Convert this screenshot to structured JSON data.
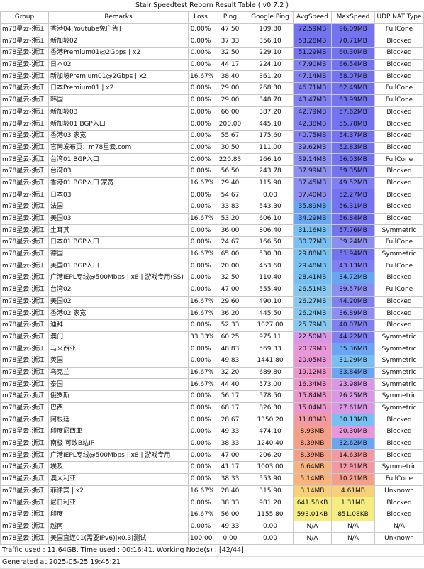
{
  "header": {
    "title": "Stair Speedtest Reborn Result Table ( v0.7.2 )"
  },
  "table": {
    "columns": [
      "Group",
      "Remarks",
      "Loss",
      "Ping",
      "Google Ping",
      "AvgSpeed",
      "MaxSpeed",
      "UDP NAT Type"
    ],
    "rows": [
      [
        "m78星云-浙江",
        "香港04[Youtube免广告]",
        "0.00%",
        "47.50",
        "109.80",
        "72.59MB",
        "96.09MB",
        "FullCone"
      ],
      [
        "m78星云-浙江",
        "新加坡02",
        "0.00%",
        "37.33",
        "356.10",
        "53.28MB",
        "70.71MB",
        "Blocked"
      ],
      [
        "m78星云-浙江",
        "香港Premium01@2Gbps | x2",
        "0.00%",
        "32.50",
        "229.10",
        "51.29MB",
        "60.30MB",
        "Blocked"
      ],
      [
        "m78星云-浙江",
        "日本02",
        "0.00%",
        "44.17",
        "224.10",
        "47.90MB",
        "66.54MB",
        "Blocked"
      ],
      [
        "m78星云-浙江",
        "新加坡Premium01@2Gbps | x2",
        "16.67%",
        "38.40",
        "361.20",
        "47.14MB",
        "58.07MB",
        "Blocked"
      ],
      [
        "m78星云-浙江",
        "日本Premium01 | x2",
        "0.00%",
        "29.00",
        "268.30",
        "46.71MB",
        "62.49MB",
        "FullCone"
      ],
      [
        "m78星云-浙江",
        "韩国",
        "0.00%",
        "29.00",
        "348.70",
        "43.47MB",
        "63.99MB",
        "FullCone"
      ],
      [
        "m78星云-浙江",
        "新加坡03",
        "0.00%",
        "66.00",
        "387.20",
        "42.79MB",
        "57.62MB",
        "Blocked"
      ],
      [
        "m78星云-浙江",
        "新加坡01 BGP入口",
        "0.00%",
        "200.00",
        "445.10",
        "42.38MB",
        "55.78MB",
        "Blocked"
      ],
      [
        "m78星云-浙江",
        "香港03 家宽",
        "0.00%",
        "55.67",
        "175.60",
        "40.75MB",
        "54.37MB",
        "Blocked"
      ],
      [
        "m78星云-浙江",
        "官网发布页：m78星云.com",
        "0.00%",
        "30.50",
        "111.00",
        "39.62MB",
        "52.83MB",
        "Blocked"
      ],
      [
        "m78星云-浙江",
        "台湾01 BGP入口",
        "0.00%",
        "220.83",
        "266.10",
        "39.14MB",
        "56.03MB",
        "FullCone"
      ],
      [
        "m78星云-浙江",
        "台湾03",
        "0.00%",
        "56.50",
        "243.78",
        "37.99MB",
        "59.35MB",
        "Blocked"
      ],
      [
        "m78星云-浙江",
        "香港01 BGP入口 家宽",
        "16.67%",
        "29.40",
        "115.90",
        "37.45MB",
        "49.52MB",
        "Blocked"
      ],
      [
        "m78星云-浙江",
        "日本03",
        "0.00%",
        "54.67",
        "0.00",
        "37.40MB",
        "52.27MB",
        "Blocked"
      ],
      [
        "m78星云-浙江",
        "法国",
        "0.00%",
        "33.83",
        "543.30",
        "35.89MB",
        "56.31MB",
        "Blocked"
      ],
      [
        "m78星云-浙江",
        "美国03",
        "16.67%",
        "53.20",
        "606.10",
        "34.29MB",
        "56.84MB",
        "Blocked"
      ],
      [
        "m78星云-浙江",
        "土耳其",
        "0.00%",
        "36.00",
        "806.40",
        "31.16MB",
        "57.76MB",
        "Symmetric"
      ],
      [
        "m78星云-浙江",
        "日本01 BGP入口",
        "0.00%",
        "24.67",
        "166.50",
        "30.77MB",
        "39.24MB",
        "FullCone"
      ],
      [
        "m78星云-浙江",
        "德国",
        "16.67%",
        "65.00",
        "530.30",
        "29.88MB",
        "51.94MB",
        "Symmetric"
      ],
      [
        "m78星云-浙江",
        "美国01 BGP入口",
        "0.00%",
        "20.00",
        "453.60",
        "29.48MB",
        "43.13MB",
        "FullCone"
      ],
      [
        "m78星云-浙江",
        "广港IEPL专线@500Mbps | x8 | 游戏专用(SS)",
        "0.00%",
        "32.50",
        "110.40",
        "28.41MB",
        "34.72MB",
        "Blocked"
      ],
      [
        "m78星云-浙江",
        "台湾02",
        "0.00%",
        "47.00",
        "555.40",
        "26.51MB",
        "39.57MB",
        "FullCone"
      ],
      [
        "m78星云-浙江",
        "美国02",
        "16.67%",
        "29.60",
        "490.10",
        "26.27MB",
        "44.20MB",
        "Blocked"
      ],
      [
        "m78星云-浙江",
        "香港02 家宽",
        "16.67%",
        "36.20",
        "445.50",
        "26.24MB",
        "36.89MB",
        "Blocked"
      ],
      [
        "m78星云-浙江",
        "迪拜",
        "0.00%",
        "52.33",
        "1027.00",
        "25.79MB",
        "40.07MB",
        "Blocked"
      ],
      [
        "m78星云-浙江",
        "澳门",
        "33.33%",
        "60.25",
        "975.11",
        "22.50MB",
        "44.22MB",
        "Symmetric"
      ],
      [
        "m78星云-浙江",
        "马来西亚",
        "0.00%",
        "48.83",
        "569.33",
        "20.79MB",
        "35.36MB",
        "Symmetric"
      ],
      [
        "m78星云-浙江",
        "英国",
        "0.00%",
        "49.83",
        "1441.80",
        "20.05MB",
        "31.29MB",
        "Symmetric"
      ],
      [
        "m78星云-浙江",
        "乌克兰",
        "16.67%",
        "32.20",
        "689.80",
        "19.12MB",
        "33.84MB",
        "Symmetric"
      ],
      [
        "m78星云-浙江",
        "泰国",
        "16.67%",
        "44.40",
        "573.00",
        "16.34MB",
        "23.98MB",
        "Symmetric"
      ],
      [
        "m78星云-浙江",
        "俄罗斯",
        "0.00%",
        "56.17",
        "578.50",
        "15.84MB",
        "26.25MB",
        "Symmetric"
      ],
      [
        "m78星云-浙江",
        "巴西",
        "0.00%",
        "68.17",
        "826.30",
        "15.04MB",
        "27.61MB",
        "Symmetric"
      ],
      [
        "m78星云-浙江",
        "阿根廷",
        "0.00%",
        "28.67",
        "1350.20",
        "11.83MB",
        "30.13MB",
        "Blocked"
      ],
      [
        "m78星云-浙江",
        "印度尼西亚",
        "0.00%",
        "49.33",
        "474.10",
        "8.93MB",
        "20.30MB",
        "Blocked"
      ],
      [
        "m78星云-浙江",
        "南极 可改B站IP",
        "0.00%",
        "38.33",
        "1240.40",
        "8.39MB",
        "32.62MB",
        "Blocked"
      ],
      [
        "m78星云-浙江",
        "广港IEPL专线@500Mbps | x8 | 游戏专用",
        "0.00%",
        "47.00",
        "206.20",
        "8.39MB",
        "14.63MB",
        "Blocked"
      ],
      [
        "m78星云-浙江",
        "埃及",
        "0.00%",
        "41.17",
        "1003.00",
        "6.64MB",
        "12.91MB",
        "Symmetric"
      ],
      [
        "m78星云-浙江",
        "澳大利亚",
        "0.00%",
        "38.33",
        "553.90",
        "5.14MB",
        "10.21MB",
        "FullCone"
      ],
      [
        "m78星云-浙江",
        "菲律宾 | x2",
        "16.67%",
        "28.40",
        "315.90",
        "3.14MB",
        "4.61MB",
        "Unknown"
      ],
      [
        "m78星云-浙江",
        "尼日利亚",
        "0.00%",
        "38.33",
        "981.20",
        "641.58KB",
        "1.31MB",
        "Blocked"
      ],
      [
        "m78星云-浙江",
        "印度",
        "16.67%",
        "56.00",
        "1155.80",
        "593.01KB",
        "851.08KB",
        "Blocked"
      ],
      [
        "m78星云-浙江",
        "越南",
        "0.00%",
        "49.33",
        "0.00",
        "N/A",
        "N/A",
        "N/A"
      ],
      [
        "m78星云-浙江",
        "美国直连01(需要IPv6)|x0.3|测试",
        "100.00%",
        "0.00",
        "0.00",
        "N/A",
        "N/A",
        "Unknown"
      ]
    ],
    "speed_colors": [
      [
        "#7474f0",
        "#7474f0"
      ],
      [
        "#7474f0",
        "#7474f0"
      ],
      [
        "#7474f0",
        "#7474f0"
      ],
      [
        "#8080f2",
        "#7474f0"
      ],
      [
        "#8080f2",
        "#7474f0"
      ],
      [
        "#8080f2",
        "#7474f0"
      ],
      [
        "#8080f2",
        "#7474f0"
      ],
      [
        "#8080f2",
        "#7474f0"
      ],
      [
        "#8080f2",
        "#7474f0"
      ],
      [
        "#8080f2",
        "#7474f0"
      ],
      [
        "#8c8ef2",
        "#7474f0"
      ],
      [
        "#8c8ef2",
        "#7474f0"
      ],
      [
        "#8c8ef2",
        "#7474f0"
      ],
      [
        "#8c8ef2",
        "#8080f2"
      ],
      [
        "#8c8ef2",
        "#7474f0"
      ],
      [
        "#6aa6f2",
        "#7474f0"
      ],
      [
        "#6aa6f2",
        "#7474f0"
      ],
      [
        "#78c0f2",
        "#7474f0"
      ],
      [
        "#78c0f2",
        "#8c8ef2"
      ],
      [
        "#78c0f2",
        "#7474f0"
      ],
      [
        "#78c0f2",
        "#8080f2"
      ],
      [
        "#78c0f2",
        "#6aa6f2"
      ],
      [
        "#86c8f0",
        "#8c8ef2"
      ],
      [
        "#86c8f0",
        "#8080f2"
      ],
      [
        "#86c8f0",
        "#8c8ef2"
      ],
      [
        "#86c8f0",
        "#8080f2"
      ],
      [
        "#d898e6",
        "#8080f2"
      ],
      [
        "#e898d8",
        "#6aa6f2"
      ],
      [
        "#e898d8",
        "#78c0f2"
      ],
      [
        "#ec96cc",
        "#6aa6f2"
      ],
      [
        "#ec96cc",
        "#d898e6"
      ],
      [
        "#ec96cc",
        "#d898e6"
      ],
      [
        "#ec96cc",
        "#d898e6"
      ],
      [
        "#f29aa4",
        "#78c0f2"
      ],
      [
        "#f4a088",
        "#e898d8"
      ],
      [
        "#f4a088",
        "#6aa6f2"
      ],
      [
        "#f4a088",
        "#f29aa4"
      ],
      [
        "#f8b47c",
        "#f29aa4"
      ],
      [
        "#f8b47c",
        "#f4a088"
      ],
      [
        "#f8d078",
        "#f8d078"
      ],
      [
        "#f6ec80",
        "#f6ec80"
      ],
      [
        "#f6ec80",
        "#f6ec80"
      ],
      [
        "#ffffff",
        "#ffffff"
      ],
      [
        "#ffffff",
        "#ffffff"
      ]
    ]
  },
  "footer": {
    "summary": "Traffic used : 11.64GB. Time used : 00:16:41. Working Node(s) : [42/44]",
    "generated": "Generated at 2025-05-25 19:45:21"
  }
}
